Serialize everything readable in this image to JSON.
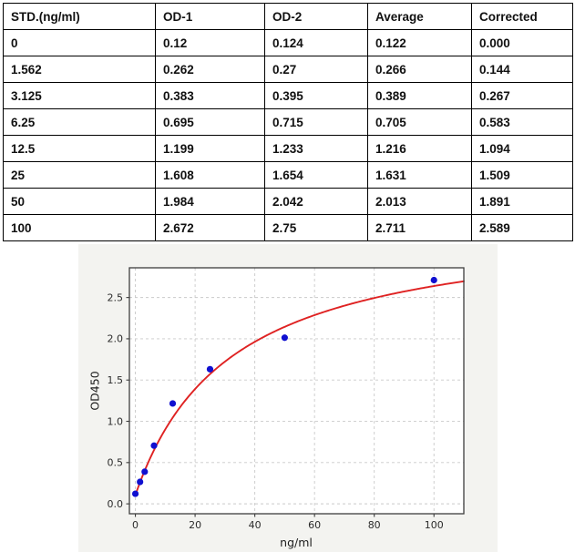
{
  "table": {
    "headers": [
      "STD.(ng/ml)",
      "OD-1",
      "OD-2",
      "Average",
      "Corrected"
    ],
    "rows": [
      [
        "0",
        "0.12",
        "0.124",
        "0.122",
        "0.000"
      ],
      [
        "1.562",
        "0.262",
        "0.27",
        "0.266",
        "0.144"
      ],
      [
        "3.125",
        "0.383",
        "0.395",
        "0.389",
        "0.267"
      ],
      [
        "6.25",
        "0.695",
        "0.715",
        "0.705",
        "0.583"
      ],
      [
        "12.5",
        "1.199",
        "1.233",
        "1.216",
        "1.094"
      ],
      [
        "25",
        "1.608",
        "1.654",
        "1.631",
        "1.509"
      ],
      [
        "50",
        "1.984",
        "2.042",
        "2.013",
        "1.891"
      ],
      [
        "100",
        "2.672",
        "2.75",
        "2.711",
        "2.589"
      ]
    ]
  },
  "chart_data": {
    "type": "scatter",
    "title": "",
    "xlabel": "ng/ml",
    "ylabel": "OD450",
    "x": [
      0,
      1.562,
      3.125,
      6.25,
      12.5,
      25,
      50,
      100
    ],
    "y": [
      0.122,
      0.266,
      0.389,
      0.705,
      1.216,
      1.631,
      2.013,
      2.711
    ],
    "fit_curve": {
      "model": "4PL",
      "a": 0.105,
      "b": 1.0,
      "c": 32,
      "d": 3.45,
      "x_start": 0,
      "x_end": 110
    },
    "xlim": [
      -2,
      110
    ],
    "ylim": [
      -0.12,
      2.86
    ],
    "x_ticks": [
      0,
      20,
      40,
      60,
      80,
      100
    ],
    "x_tick_labels": [
      "0",
      "20",
      "40",
      "60",
      "80",
      "100"
    ],
    "y_ticks": [
      0.0,
      0.5,
      1.0,
      1.5,
      2.0,
      2.5
    ],
    "y_tick_labels": [
      "0.0",
      "0.5",
      "1.0",
      "1.5",
      "2.0",
      "2.5"
    ],
    "grid": true,
    "legend": "none",
    "colors": {
      "point": "#1010d0",
      "curve": "#df2222",
      "grid": "#c9c9c9",
      "spine": "#3d3d3d",
      "tick_text": "#2b2b2b",
      "figure_bg": "#f3f3f0",
      "plot_bg": "#ffffff"
    }
  }
}
